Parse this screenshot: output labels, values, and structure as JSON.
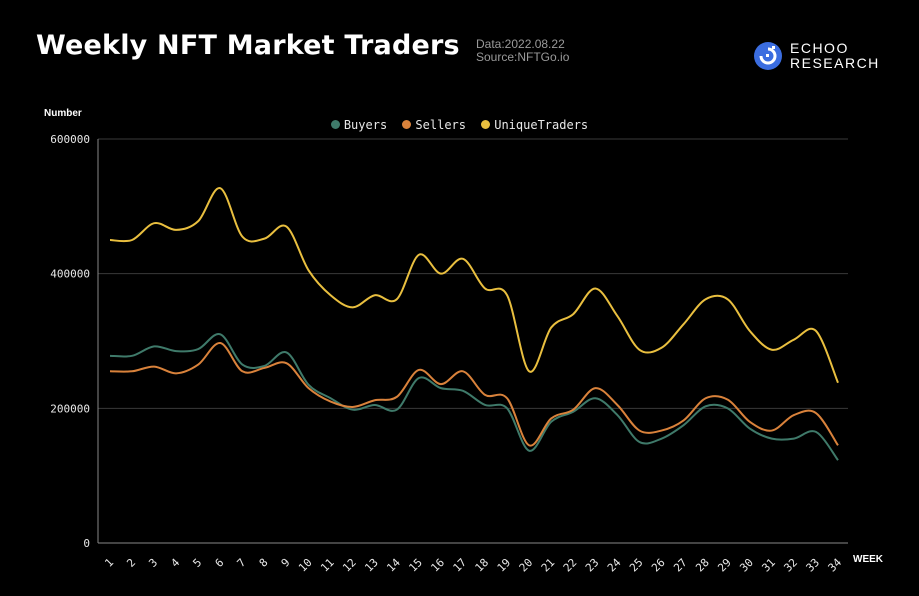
{
  "header": {
    "title": "Weekly NFT Market Traders",
    "date": "Data:2022.08.22",
    "source": "Source:NFTGo.io"
  },
  "logo": {
    "line1": "ECHOO",
    "line2": "RESEARCH",
    "icon": "echoo-logo-icon",
    "color": "#3b6de0"
  },
  "chart_data": {
    "type": "line",
    "ylabel": "Number",
    "xlabel": "WEEK",
    "ylim": [
      0,
      600000
    ],
    "yticks": [
      "0",
      "200000",
      "400000",
      "600000"
    ],
    "grid": true,
    "legend_position": "top-center",
    "x": [
      1,
      2,
      3,
      4,
      5,
      6,
      7,
      8,
      9,
      10,
      11,
      12,
      13,
      14,
      15,
      16,
      17,
      18,
      19,
      20,
      21,
      22,
      23,
      24,
      25,
      26,
      27,
      28,
      29,
      30,
      31,
      32,
      33,
      34
    ],
    "series": [
      {
        "name": "Buyers",
        "color": "#3f7a6a",
        "values": [
          278000,
          278000,
          292000,
          285000,
          288000,
          310000,
          265000,
          263000,
          283000,
          235000,
          215000,
          198000,
          205000,
          198000,
          245000,
          230000,
          226000,
          205000,
          200000,
          137000,
          180000,
          195000,
          215000,
          190000,
          150000,
          155000,
          175000,
          203000,
          200000,
          170000,
          155000,
          155000,
          165000,
          123000
        ]
      },
      {
        "name": "Sellers",
        "color": "#d9823b",
        "values": [
          255000,
          255000,
          262000,
          252000,
          265000,
          297000,
          255000,
          260000,
          267000,
          230000,
          210000,
          202000,
          212000,
          217000,
          257000,
          236000,
          255000,
          220000,
          215000,
          145000,
          185000,
          198000,
          230000,
          205000,
          167000,
          167000,
          182000,
          215000,
          213000,
          180000,
          167000,
          190000,
          193000,
          145000
        ]
      },
      {
        "name": "UniqueTraders",
        "color": "#e9bf3f",
        "values": [
          450000,
          450000,
          475000,
          465000,
          478000,
          527000,
          455000,
          452000,
          470000,
          405000,
          368000,
          350000,
          368000,
          362000,
          428000,
          400000,
          422000,
          378000,
          368000,
          255000,
          320000,
          340000,
          378000,
          337000,
          287000,
          290000,
          325000,
          362000,
          362000,
          315000,
          287000,
          302000,
          315000,
          238000
        ]
      }
    ]
  }
}
